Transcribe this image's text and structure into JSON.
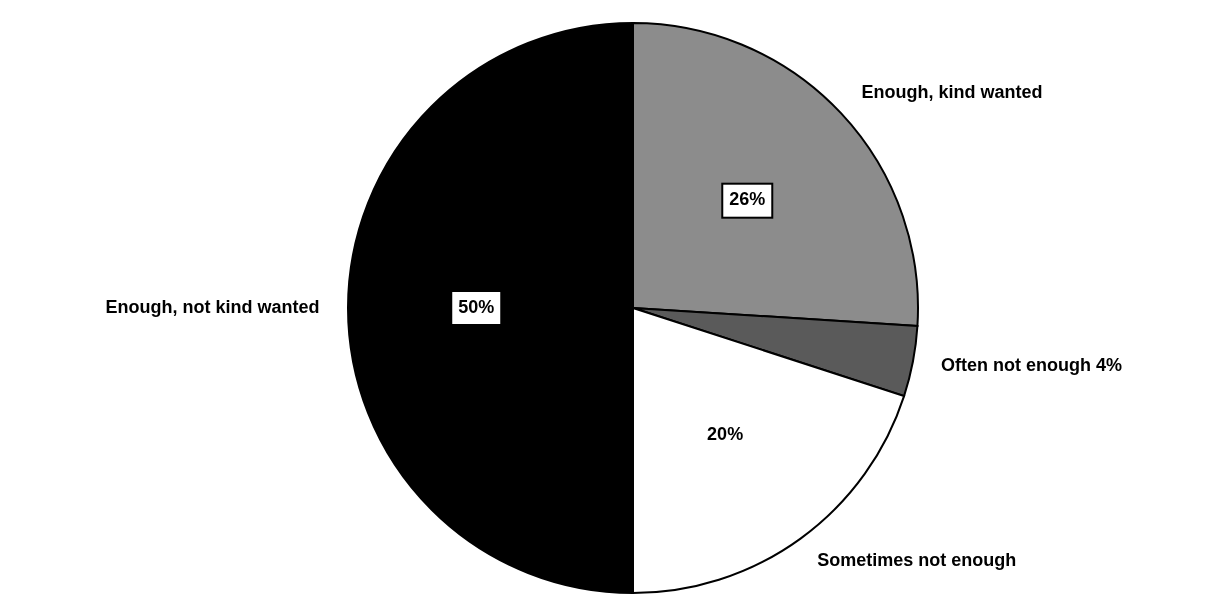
{
  "chart_data": {
    "type": "pie",
    "categories": [
      "Enough, kind wanted",
      "Often not enough",
      "Sometimes not enough",
      "Enough, not kind wanted"
    ],
    "values": [
      26,
      4,
      20,
      50
    ],
    "colors": [
      "#8c8c8c",
      "#5a5a5a",
      "#ffffff",
      "#000000"
    ],
    "value_labels": [
      "26%",
      "4%",
      "20%",
      "50%"
    ]
  }
}
